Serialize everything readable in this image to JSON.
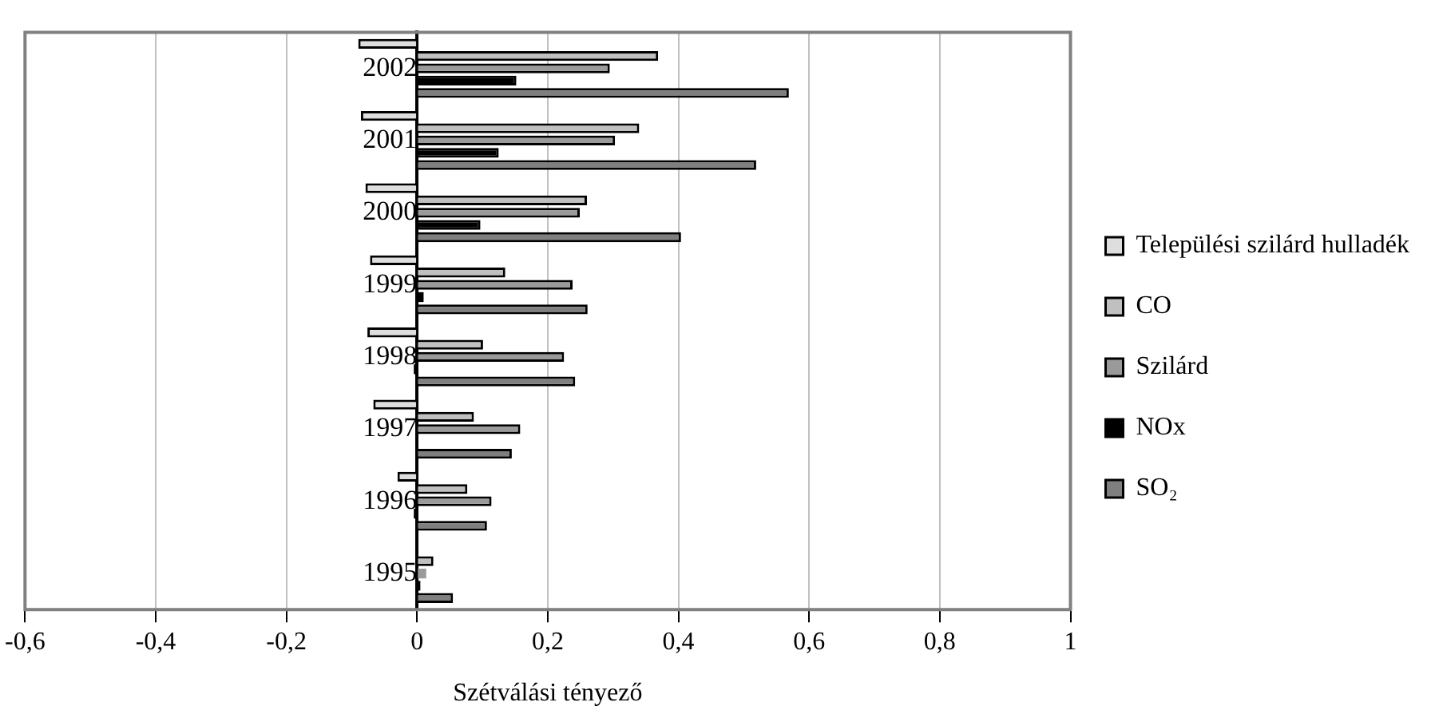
{
  "chart_data": {
    "type": "bar",
    "orientation": "horizontal",
    "xlabel": "Szétválási tényező",
    "categories": [
      "2002",
      "2001",
      "2000",
      "1999",
      "1998",
      "1997",
      "1996",
      "1995"
    ],
    "series": [
      {
        "name": "Települési szilárd hulladék",
        "color": "#dedede",
        "values": [
          -0.09,
          -0.086,
          -0.079,
          -0.072,
          -0.076,
          -0.067,
          -0.03,
          null
        ]
      },
      {
        "name": "CO",
        "color": "#c0c0c0",
        "values": [
          0.369,
          0.34,
          0.26,
          0.135,
          0.101,
          0.087,
          0.077,
          0.025
        ]
      },
      {
        "name": "Szilárd",
        "color": "#9a9a9a",
        "values": [
          0.295,
          0.303,
          0.249,
          0.238,
          0.225,
          0.158,
          0.114,
          0.014
        ]
      },
      {
        "name": "NOx",
        "color": "#000000",
        "values": [
          0.152,
          0.125,
          0.097,
          0.01,
          -0.005,
          0,
          -0.005,
          0.005
        ]
      },
      {
        "name": "SO₂",
        "color": "#7f7f7f",
        "values": [
          0.569,
          0.519,
          0.404,
          0.261,
          0.242,
          0.145,
          0.107,
          0.055
        ]
      }
    ],
    "xlim": [
      -0.6,
      1
    ],
    "xticks": [
      {
        "value": -0.6,
        "label": "-0,6"
      },
      {
        "value": -0.4,
        "label": "-0,4"
      },
      {
        "value": -0.2,
        "label": "-0,2"
      },
      0,
      {
        "value": 0.2,
        "label": "0,2"
      },
      {
        "value": 0.4,
        "label": "0,4"
      },
      {
        "value": 0.6,
        "label": "0,6"
      },
      {
        "value": 0.8,
        "label": "0,8"
      },
      1
    ],
    "grid": "x",
    "legend": "right"
  }
}
